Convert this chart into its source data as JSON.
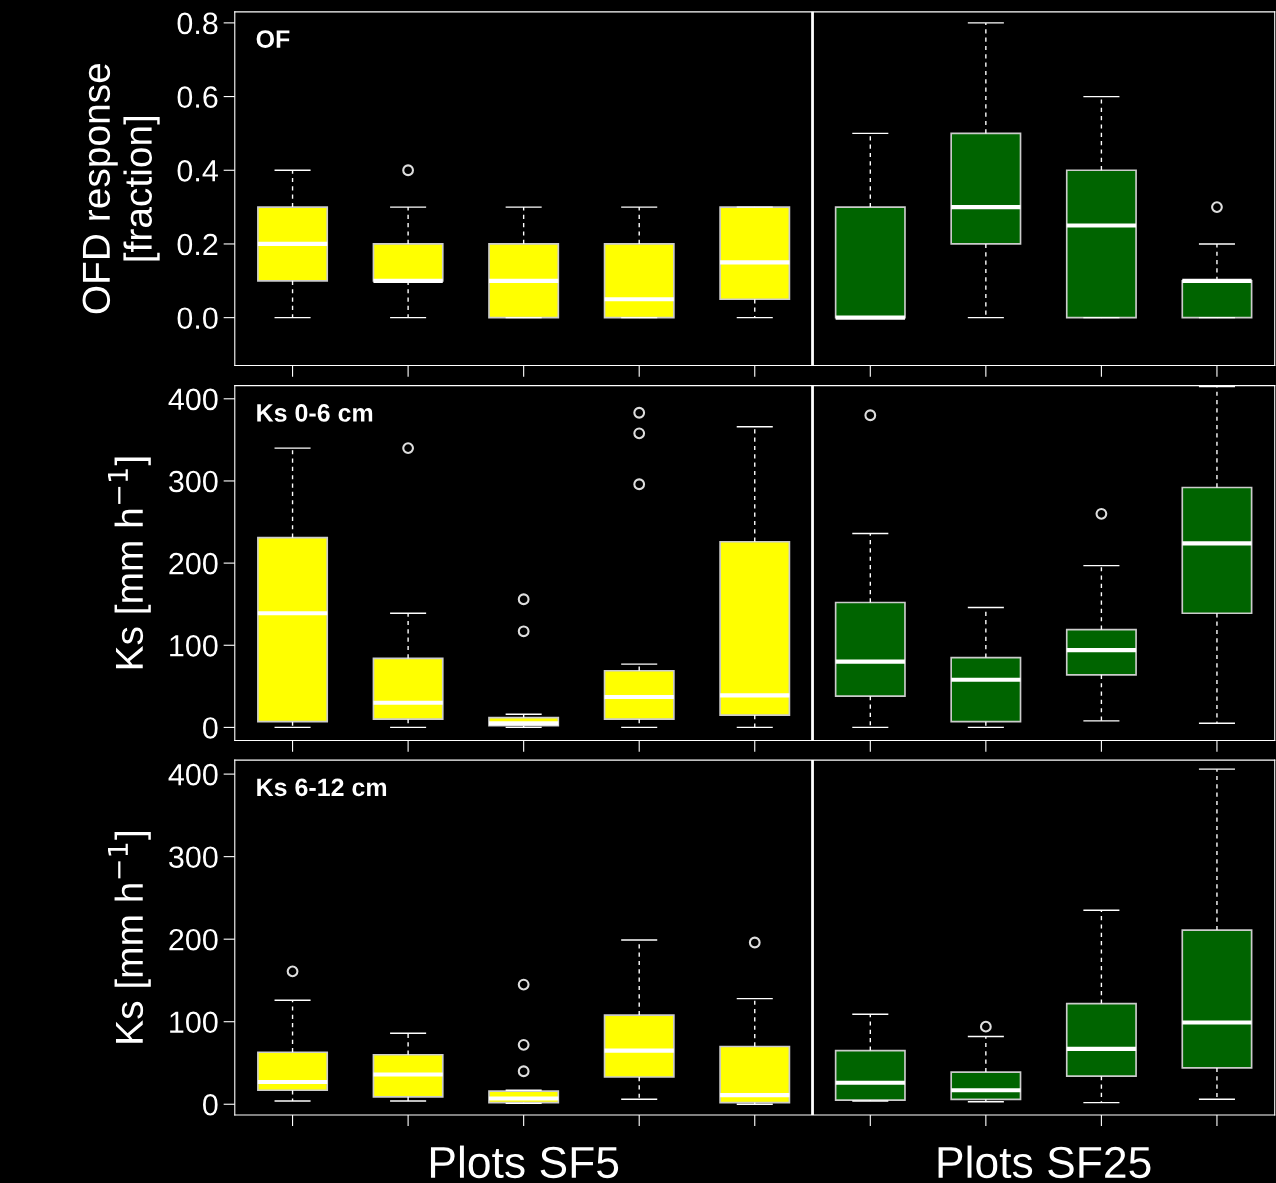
{
  "chart_data": [
    {
      "type": "box",
      "ylabel": "OFD response\n[fraction]",
      "annotations": [
        "OF"
      ],
      "categories": [
        null,
        null,
        null,
        null,
        null,
        null,
        null,
        null,
        null
      ],
      "colors": [
        "#ffff00",
        "#ffff00",
        "#ffff00",
        "#ffff00",
        "#ffff00",
        "#006400",
        "#006400",
        "#006400",
        "#006400"
      ],
      "boxes": [
        {
          "low": 0,
          "q1": 0.1,
          "median": 0.2,
          "q3": 0.3,
          "high": 0.4
        },
        {
          "low": 0,
          "q1": 0.1,
          "median": 0.1,
          "q3": 0.2,
          "high": 0.3,
          "outliers": [
            0.4
          ]
        },
        {
          "low": 0,
          "q1": 0,
          "median": 0.1,
          "q3": 0.2,
          "high": 0.3
        },
        {
          "low": 0,
          "q1": 0,
          "median": 0.05,
          "q3": 0.2,
          "high": 0.3
        },
        {
          "low": 0,
          "q1": 0.05,
          "median": 0.15,
          "q3": 0.3,
          "high": 0.3
        },
        {
          "low": 0,
          "q1": 0,
          "median": 0,
          "q3": 0.3,
          "high": 0.5
        },
        {
          "low": 0,
          "q1": 0.2,
          "median": 0.3,
          "q3": 0.5,
          "high": 0.8
        },
        {
          "low": 0,
          "q1": 0,
          "median": 0.25,
          "q3": 0.4,
          "high": 0.6
        },
        {
          "low": 0,
          "q1": 0,
          "median": 0.1,
          "q3": 0.1,
          "high": 0.2,
          "outliers": [
            0.3
          ]
        }
      ],
      "ylim": [
        -0.13,
        0.83
      ],
      "yticks": [
        {
          "value": 0,
          "label": "0.0"
        },
        {
          "value": 0.2,
          "label": "0.2"
        },
        {
          "value": 0.4,
          "label": "0.4"
        },
        {
          "value": 0.6,
          "label": "0.6"
        },
        {
          "value": 0.8,
          "label": "0.8"
        }
      ],
      "tick_labels": "y"
    },
    {
      "type": "box",
      "ylabel": "Ks [mm h$^{−1}$]",
      "annotations": [
        "Ks 0-6 cm"
      ],
      "categories": [
        null,
        null,
        null,
        null,
        null,
        null,
        null,
        null,
        null
      ],
      "colors": [
        "#ffff00",
        "#ffff00",
        "#ffff00",
        "#ffff00",
        "#ffff00",
        "#006400",
        "#006400",
        "#006400",
        "#006400"
      ],
      "boxes": [
        {
          "low": 0,
          "q1": 7,
          "median": 139,
          "q3": 231,
          "high": 340
        },
        {
          "low": 0,
          "q1": 10,
          "median": 30,
          "q3": 84,
          "high": 139,
          "outliers": [
            340
          ]
        },
        {
          "low": 0,
          "q1": 2,
          "median": 5,
          "q3": 12,
          "high": 16,
          "outliers": [
            156,
            117
          ]
        },
        {
          "low": 0,
          "q1": 10,
          "median": 37,
          "q3": 69,
          "high": 77,
          "outliers": [
            383,
            358,
            296
          ]
        },
        {
          "low": 0,
          "q1": 15,
          "median": 39,
          "q3": 226,
          "high": 366
        },
        {
          "low": 0,
          "q1": 38,
          "median": 80,
          "q3": 152,
          "high": 236,
          "outliers": [
            380
          ]
        },
        {
          "low": 0,
          "q1": 7,
          "median": 58,
          "q3": 85,
          "high": 146
        },
        {
          "low": 8,
          "q1": 64,
          "median": 94,
          "q3": 119,
          "high": 197,
          "outliers": [
            260
          ]
        },
        {
          "low": 5,
          "q1": 139,
          "median": 224,
          "q3": 292,
          "high": 415
        }
      ],
      "ylim": [
        -16,
        416
      ],
      "yticks": [
        0,
        100,
        200,
        300,
        400
      ],
      "tick_labels": "y"
    },
    {
      "type": "box",
      "ylabel": "Ks [mm h$^{−1}$]",
      "annotations": [
        "Ks 6-12 cm",
        "Plots SF5",
        "Plots SF25"
      ],
      "categories": [
        null,
        null,
        null,
        null,
        null,
        null,
        null,
        null,
        null
      ],
      "colors": [
        "#ffff00",
        "#ffff00",
        "#ffff00",
        "#ffff00",
        "#ffff00",
        "#006400",
        "#006400",
        "#006400",
        "#006400"
      ],
      "boxes": [
        {
          "low": 4,
          "q1": 17,
          "median": 27,
          "q3": 63,
          "high": 126,
          "outliers": [
            161
          ]
        },
        {
          "low": 4,
          "q1": 9,
          "median": 36,
          "q3": 60,
          "high": 86
        },
        {
          "low": 1,
          "q1": 2,
          "median": 7,
          "q3": 16,
          "high": 17,
          "outliers": [
            145,
            72,
            40
          ]
        },
        {
          "low": 6,
          "q1": 33,
          "median": 65,
          "q3": 108,
          "high": 199
        },
        {
          "low": 0,
          "q1": 2,
          "median": 11,
          "q3": 70,
          "high": 128,
          "outliers": [
            196
          ]
        },
        {
          "low": 4,
          "q1": 5,
          "median": 26,
          "q3": 65,
          "high": 109
        },
        {
          "low": 3,
          "q1": 6,
          "median": 17,
          "q3": 39,
          "high": 82,
          "outliers": [
            94
          ]
        },
        {
          "low": 2,
          "q1": 34,
          "median": 67,
          "q3": 122,
          "high": 235
        },
        {
          "low": 6,
          "q1": 44,
          "median": 99,
          "q3": 211,
          "high": 406
        }
      ],
      "ylim": [
        -13,
        417
      ],
      "yticks": [
        0,
        100,
        200,
        300,
        400
      ],
      "tick_labels": "y"
    }
  ]
}
